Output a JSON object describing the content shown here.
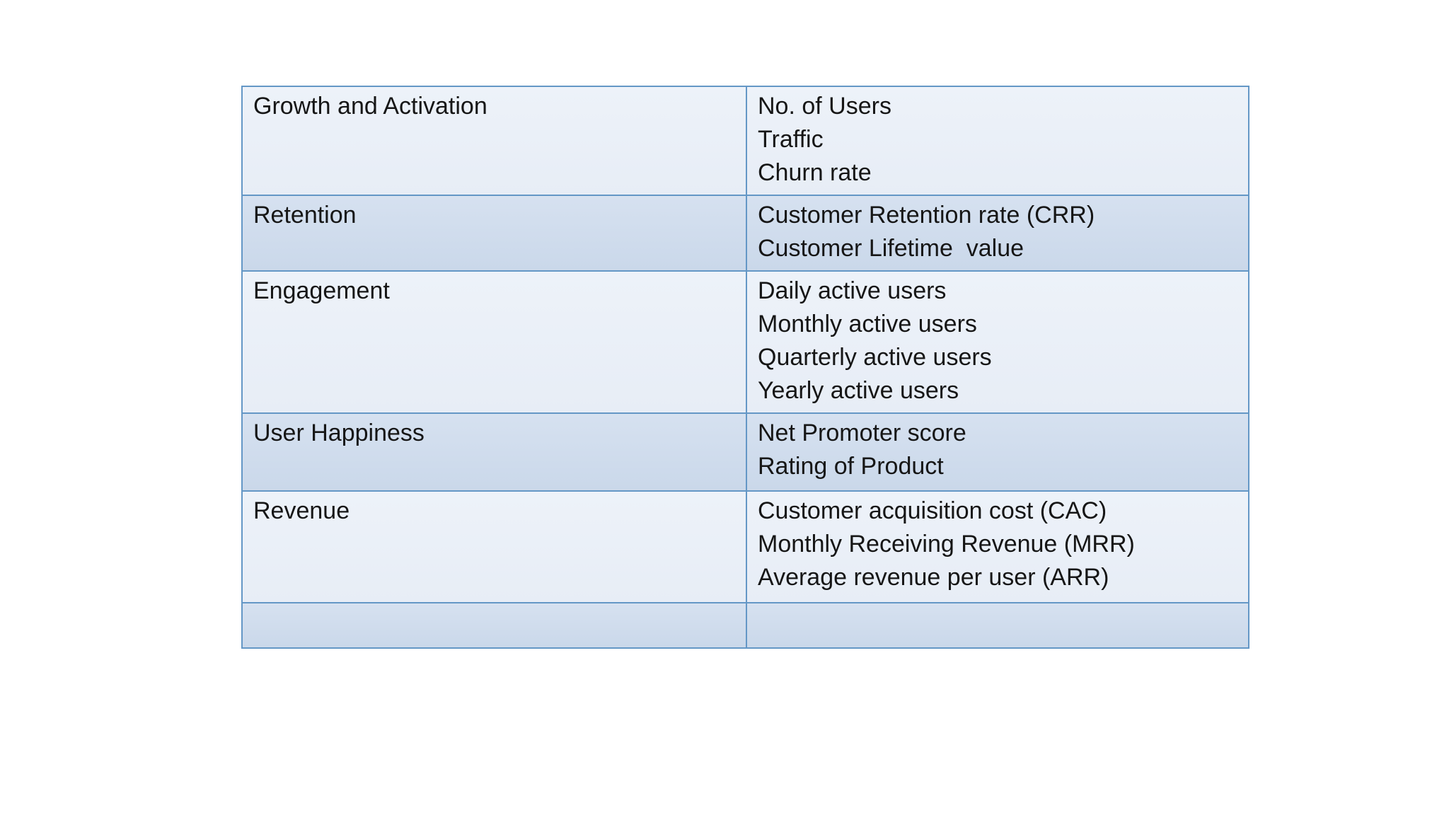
{
  "page": {
    "background_color": "#ffffff",
    "description": "Slide with a two-column table of product metric categories and their metrics"
  },
  "table": {
    "columns": [
      "category",
      "metrics"
    ],
    "colors": {
      "row_light": "#e9eff7",
      "row_dark": "#cedbec",
      "border": "#6497c6",
      "text": "#161616"
    },
    "rows": [
      {
        "category": "Growth and Activation",
        "metrics": [
          "No. of Users",
          "Traffic",
          "Churn rate"
        ],
        "metrics_text": "No. of Users\nTraffic\nChurn rate"
      },
      {
        "category": "Retention",
        "metrics": [
          "Customer Retention rate (CRR)",
          "Customer Lifetime  value"
        ],
        "metrics_text": "Customer Retention rate (CRR)\nCustomer Lifetime  value"
      },
      {
        "category": "Engagement",
        "metrics": [
          "Daily active users",
          "Monthly active users",
          "Quarterly active users",
          "Yearly active users"
        ],
        "metrics_text": "Daily active users\nMonthly active users\nQuarterly active users\nYearly active users"
      },
      {
        "category": "User Happiness",
        "metrics": [
          "Net Promoter score",
          "Rating of Product"
        ],
        "metrics_text": "Net Promoter score\nRating of Product"
      },
      {
        "category": "Revenue",
        "metrics": [
          "Customer acquisition cost (CAC)",
          "Monthly Receiving Revenue (MRR)",
          "Average revenue per user (ARR)"
        ],
        "metrics_text": "Customer acquisition cost (CAC)\nMonthly Receiving Revenue (MRR)\nAverage revenue per user (ARR)"
      },
      {
        "category": "",
        "metrics": [],
        "metrics_text": ""
      }
    ]
  }
}
